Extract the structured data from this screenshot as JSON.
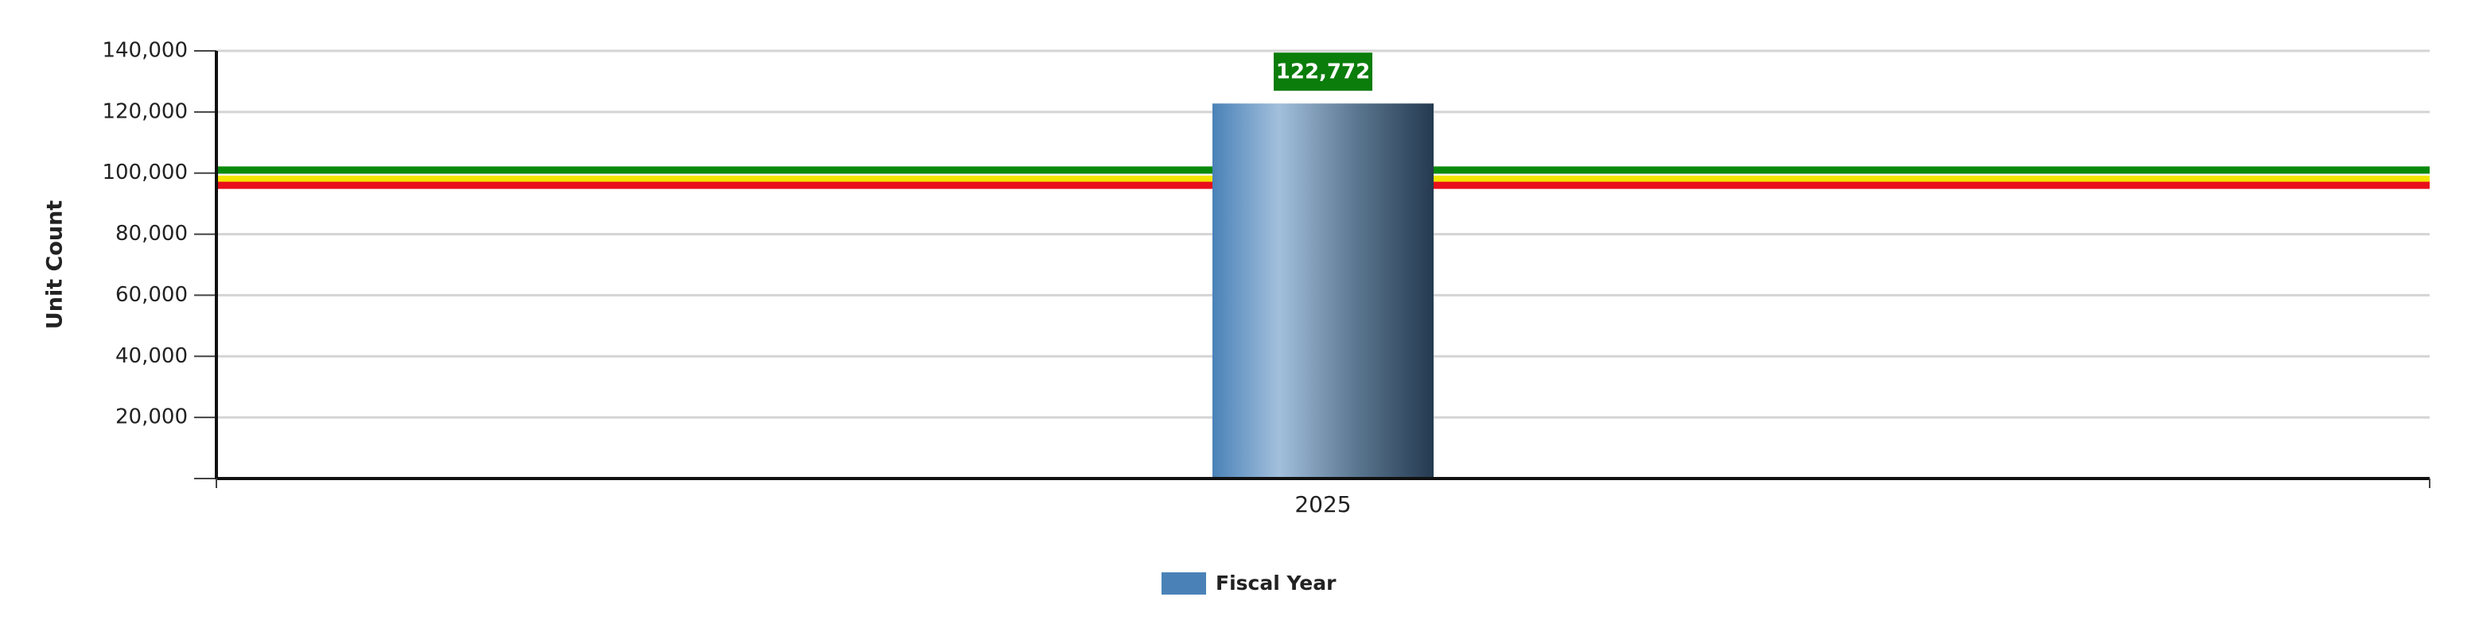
{
  "chart_data": {
    "type": "bar",
    "y_label": "Unit Count",
    "categories": [
      "2025"
    ],
    "series": [
      {
        "name": "Fiscal Year",
        "color": "#4a82b8",
        "values": [
          122772
        ],
        "value_labels": [
          "122,772"
        ],
        "label_color": "#0a7d0a"
      }
    ],
    "ylim": [
      0,
      140000
    ],
    "yticks": [
      {
        "value": 20000,
        "label": "20,000"
      },
      {
        "value": 40000,
        "label": "40,000"
      },
      {
        "value": 60000,
        "label": "60,000"
      },
      {
        "value": 80000,
        "label": "80,000"
      },
      {
        "value": 100000,
        "label": "100,000"
      },
      {
        "value": 120000,
        "label": "120,000"
      },
      {
        "value": 140000,
        "label": "140,000"
      }
    ],
    "grid": true,
    "reference_lines": [
      {
        "value": 101000,
        "color": "#0a8a0a"
      },
      {
        "value": 98000,
        "color": "#f2e600"
      },
      {
        "value": 96000,
        "color": "#e8101a"
      }
    ]
  }
}
